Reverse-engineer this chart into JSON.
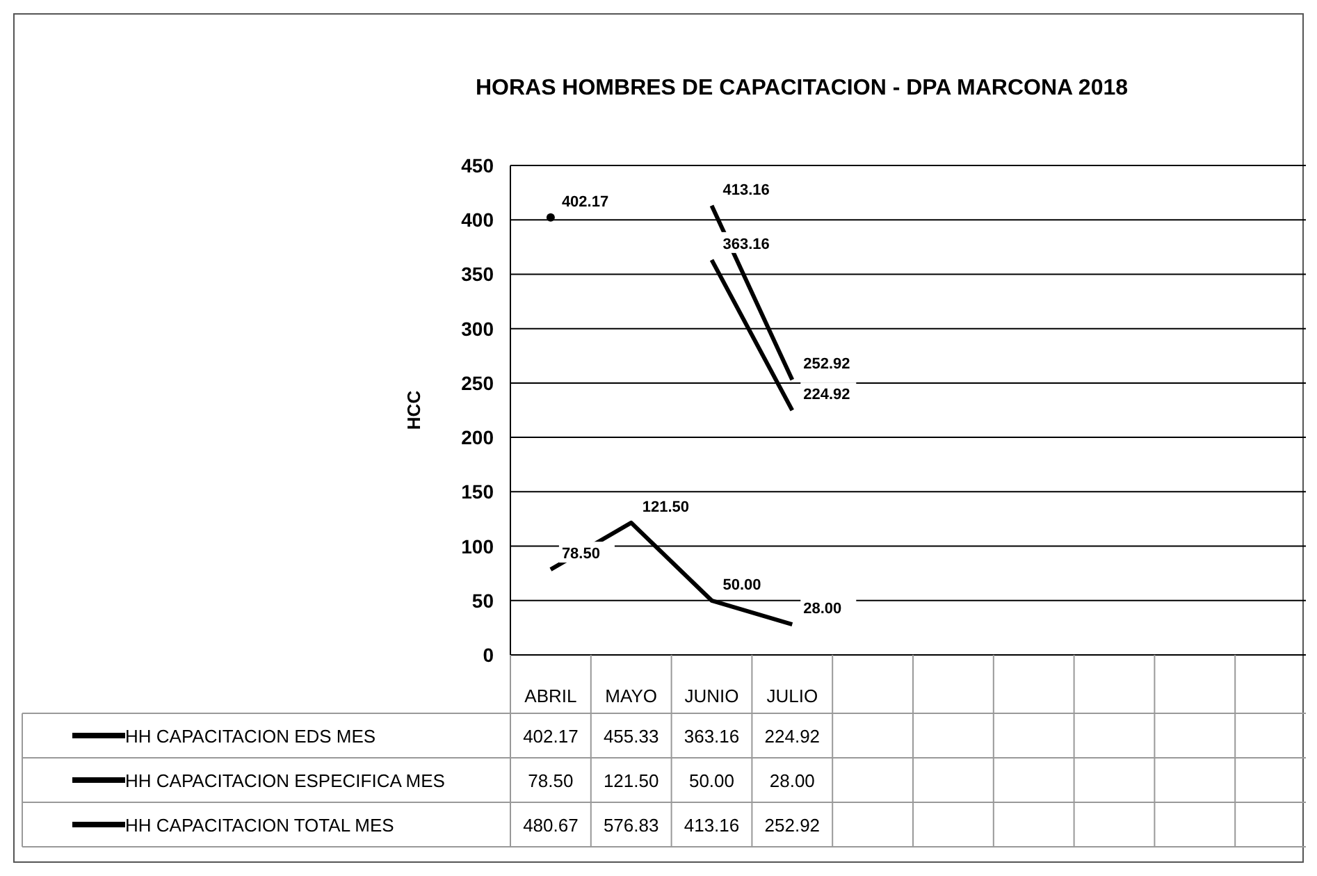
{
  "chart_data": {
    "type": "line",
    "title": "HORAS HOMBRES DE CAPACITACION - DPA MARCONA 2018",
    "ylabel": "HCC",
    "categories": [
      "ABRIL",
      "MAYO",
      "JUNIO",
      "JULIO",
      null,
      null,
      null,
      null,
      null,
      null
    ],
    "ylim": [
      0,
      450
    ],
    "yticks": [
      0,
      50,
      100,
      150,
      200,
      250,
      300,
      350,
      400,
      450
    ],
    "grid": "y",
    "legend": "bottom",
    "marker": "none",
    "line_style": "solid",
    "series": [
      {
        "name": "HH CAPACITACION EDS MES",
        "color": "#000000",
        "values": [
          402.17,
          null,
          363.16,
          224.92,
          null,
          null,
          null,
          null,
          null,
          null
        ],
        "value_labels": [
          "402.17",
          "455.33",
          "363.16",
          "224.92",
          null,
          null,
          null,
          null,
          null,
          null
        ]
      },
      {
        "name": "HH CAPACITACION ESPECIFICA MES",
        "color": "#000000",
        "values": [
          78.5,
          121.5,
          50,
          28,
          null,
          null,
          null,
          null,
          null,
          null
        ],
        "value_labels": [
          "78.50",
          "121.50",
          "50.00",
          "28.00",
          null,
          null,
          null,
          null,
          null,
          null
        ]
      },
      {
        "name": "HH CAPACITACION TOTAL MES",
        "color": "#000000",
        "values": [
          null,
          null,
          413.16,
          252.92,
          null,
          null,
          null,
          null,
          null,
          null
        ],
        "value_labels": [
          "480.67",
          "576.83",
          "413.16",
          "252.92",
          null,
          null,
          null,
          null,
          null,
          null
        ]
      }
    ]
  }
}
